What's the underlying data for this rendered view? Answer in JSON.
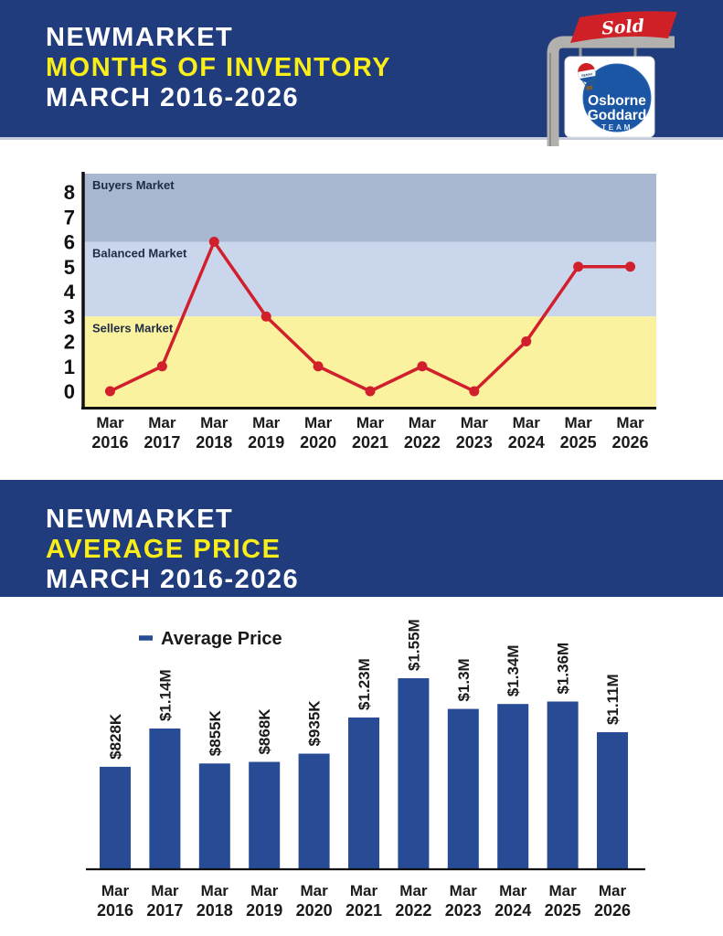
{
  "colors": {
    "header_blue": "#203c7c",
    "title_yellow": "#f9ed1a",
    "line_red": "#d1202b",
    "bar_blue": "#274b94",
    "band_buyers": "#a9b8d1",
    "band_balanced": "#c9d6ec",
    "band_sellers": "#fbf2a0",
    "axis_black": "#111111"
  },
  "header_inventory": {
    "line1": "NEWMARKET",
    "line2": "MONTHS OF INVENTORY",
    "line3": "MARCH 2016-2026"
  },
  "header_price": {
    "line1": "NEWMARKET",
    "line2": "AVERAGE PRICE",
    "line3": "MARCH 2016-2026"
  },
  "logo": {
    "flag_text": "Sold",
    "balloon_text": "REMAX",
    "team_line1": "Osborne",
    "team_line2": "Goddard",
    "team_line3": "TEAM"
  },
  "chart_data": [
    {
      "type": "line",
      "title": "NEWMARKET MONTHS OF INVENTORY MARCH 2016-2026",
      "categories": [
        "Mar 2016",
        "Mar 2017",
        "Mar 2018",
        "Mar 2019",
        "Mar 2020",
        "Mar 2021",
        "Mar 2022",
        "Mar 2023",
        "Mar 2024",
        "Mar 2025",
        "Mar 2026"
      ],
      "values": [
        0,
        1,
        6,
        3,
        1,
        0,
        1,
        0,
        2,
        5,
        5
      ],
      "xlabel": "",
      "ylabel": "",
      "ylim": [
        0,
        8
      ],
      "yticks": [
        8,
        7,
        6,
        5,
        4,
        3,
        2,
        1,
        0
      ],
      "grid": false,
      "legend_position": "none",
      "line_color": "#d1202b",
      "bands": [
        {
          "label": "Buyers Market",
          "from": 6,
          "to": 8.8,
          "color": "#a9b8d1"
        },
        {
          "label": "Balanced Market",
          "from": 3,
          "to": 6,
          "color": "#c9d6ec"
        },
        {
          "label": "Sellers Market",
          "from": -0.65,
          "to": 3,
          "color": "#fbf2a0"
        }
      ],
      "band_label_color": "#1d2b45"
    },
    {
      "type": "bar",
      "title": "NEWMARKET AVERAGE PRICE MARCH 2016-2026",
      "legend": [
        {
          "label": "Average Price",
          "color": "#274b94"
        }
      ],
      "legend_position": "top-left",
      "categories": [
        "Mar 2016",
        "Mar 2017",
        "Mar 2018",
        "Mar 2019",
        "Mar 2020",
        "Mar 2021",
        "Mar 2022",
        "Mar 2023",
        "Mar 2024",
        "Mar 2025",
        "Mar 2026"
      ],
      "values": [
        828000,
        1140000,
        855000,
        868000,
        935000,
        1230000,
        1550000,
        1300000,
        1340000,
        1360000,
        1110000
      ],
      "value_labels": [
        "$828K",
        "$1.14M",
        "$855K",
        "$868K",
        "$935K",
        "$1.23M",
        "$1.55M",
        "$1.3M",
        "$1.34M",
        "$1.36M",
        "$1.11M"
      ],
      "bar_color": "#274b94",
      "value_label_color": "#1a1a1a",
      "grid": false
    }
  ]
}
